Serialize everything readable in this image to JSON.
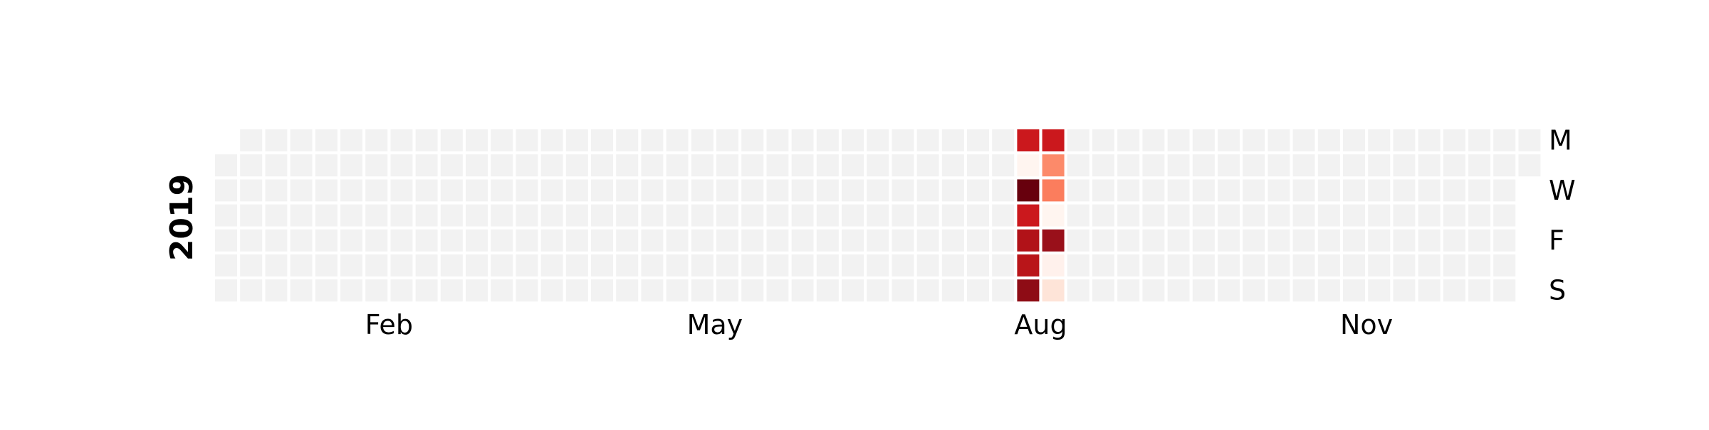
{
  "chart_data": {
    "type": "heatmap",
    "subtype": "calendar",
    "year_label": "2019",
    "empty_color": "#f2f2f2",
    "colormap": "Reds",
    "month_labels": [
      {
        "text": "Feb",
        "week": 6.5
      },
      {
        "text": "May",
        "week": 19.5
      },
      {
        "text": "Aug",
        "week": 32.5
      },
      {
        "text": "Nov",
        "week": 45.5
      }
    ],
    "day_labels": [
      {
        "text": "M",
        "row": 0
      },
      {
        "text": "W",
        "row": 2
      },
      {
        "text": "F",
        "row": 4
      },
      {
        "text": "S",
        "row": 6
      }
    ],
    "values": [
      {
        "date": "2019-08-12",
        "color": "#cb181d"
      },
      {
        "date": "2019-08-13",
        "color": "#fff5f0"
      },
      {
        "date": "2019-08-14",
        "color": "#67000d"
      },
      {
        "date": "2019-08-15",
        "color": "#cb181d"
      },
      {
        "date": "2019-08-16",
        "color": "#b11218"
      },
      {
        "date": "2019-08-17",
        "color": "#b91519"
      },
      {
        "date": "2019-08-18",
        "color": "#8e0c15"
      },
      {
        "date": "2019-08-19",
        "color": "#cb181d"
      },
      {
        "date": "2019-08-20",
        "color": "#fc8a6a"
      },
      {
        "date": "2019-08-21",
        "color": "#fb7d5d"
      },
      {
        "date": "2019-08-22",
        "color": "#fff5f0"
      },
      {
        "date": "2019-08-23",
        "color": "#99101a"
      },
      {
        "date": "2019-08-24",
        "color": "#fff1ec"
      },
      {
        "date": "2019-08-25",
        "color": "#fee4d8"
      }
    ]
  }
}
